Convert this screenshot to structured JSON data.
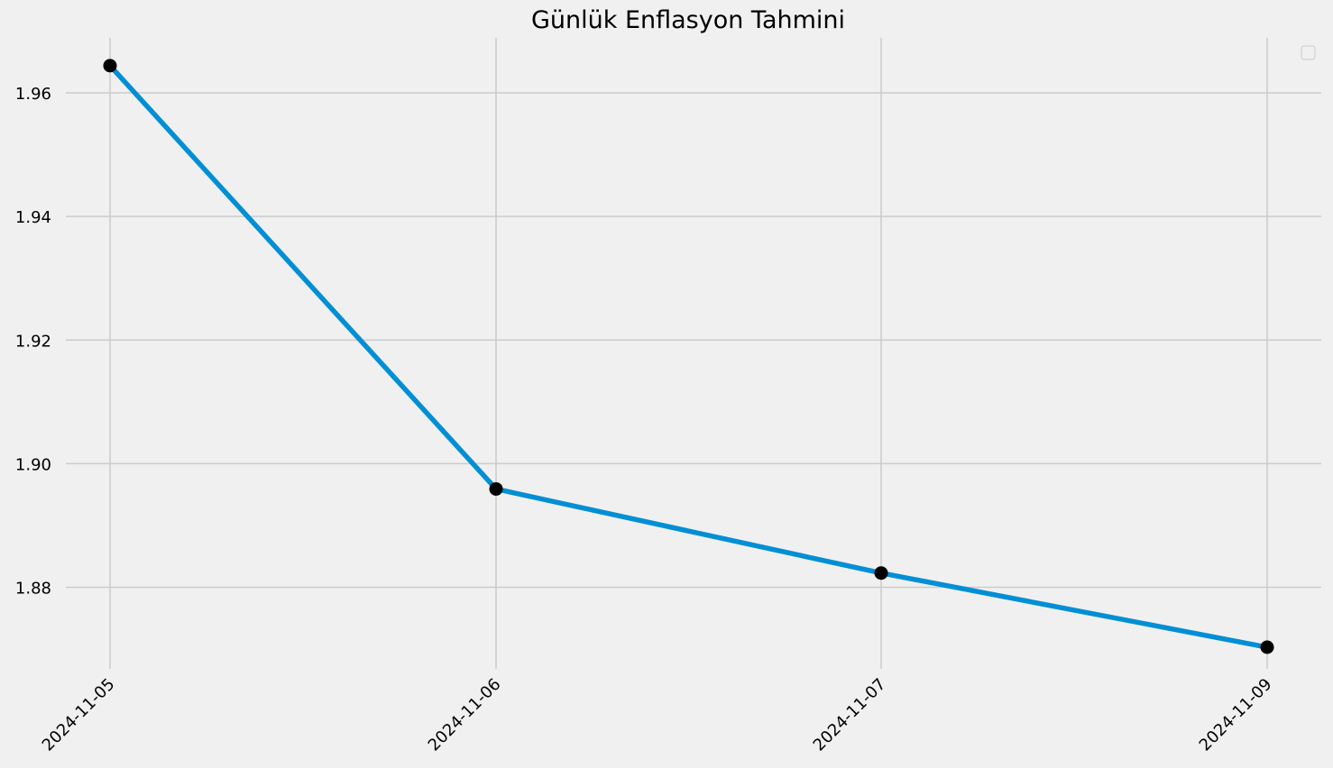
{
  "chart_data": {
    "type": "line",
    "title": "Günlük Enflasyon Tahmini",
    "xlabel": "",
    "ylabel": "",
    "categories": [
      "2024-11-05",
      "2024-11-06",
      "2024-11-07",
      "2024-11-09"
    ],
    "series": [
      {
        "values": [
          1.9644,
          1.8959,
          1.8823,
          1.8703
        ]
      }
    ],
    "ylim": [
      1.8668,
      1.9689
    ],
    "yticks": [
      "1.88",
      "1.90",
      "1.92",
      "1.94",
      "1.96"
    ],
    "grid": true,
    "legend": "top-right",
    "colors": {
      "line": "#008fd5",
      "marker": "#000000",
      "grid": "#cbcbcb",
      "background": "#f0f0f0"
    }
  }
}
